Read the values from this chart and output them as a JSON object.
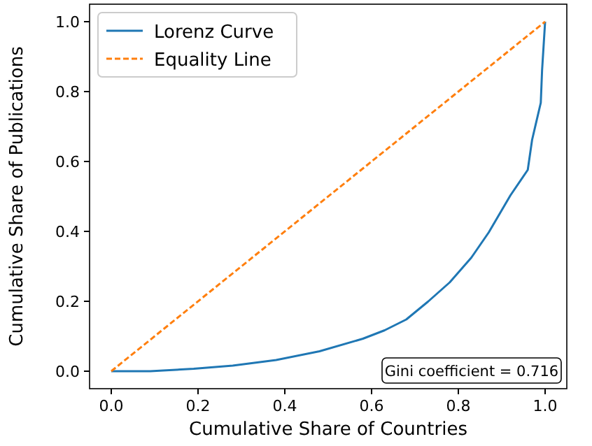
{
  "chart_data": {
    "type": "line",
    "xlabel": "Cumulative Share of Countries",
    "ylabel": "Cumulative Share of Publications",
    "xlim": [
      -0.05,
      1.05
    ],
    "ylim": [
      -0.05,
      1.05
    ],
    "xticks": [
      {
        "value": 0,
        "label": "0.0"
      },
      {
        "value": 0.2,
        "label": "0.2"
      },
      {
        "value": 0.4,
        "label": "0.4"
      },
      {
        "value": 0.6,
        "label": "0.6"
      },
      {
        "value": 0.8,
        "label": "0.8"
      },
      {
        "value": 1,
        "label": "1.0"
      }
    ],
    "yticks": [
      {
        "value": 0,
        "label": "0.0"
      },
      {
        "value": 0.2,
        "label": "0.2"
      },
      {
        "value": 0.4,
        "label": "0.4"
      },
      {
        "value": 0.6,
        "label": "0.6"
      },
      {
        "value": 0.8,
        "label": "0.8"
      },
      {
        "value": 1,
        "label": "1.0"
      }
    ],
    "series": [
      {
        "name": "Lorenz Curve",
        "color": "#1f77b4",
        "line_style": "solid",
        "x": [
          0,
          0.09,
          0.19,
          0.28,
          0.38,
          0.48,
          0.58,
          0.63,
          0.68,
          0.73,
          0.78,
          0.83,
          0.87,
          0.92,
          0.96,
          0.97,
          0.99,
          0.993,
          1
        ],
        "values": [
          0,
          0,
          0.007,
          0.016,
          0.032,
          0.057,
          0.093,
          0.117,
          0.148,
          0.199,
          0.254,
          0.325,
          0.397,
          0.503,
          0.576,
          0.662,
          0.768,
          0.861,
          1
        ]
      },
      {
        "name": "Equality Line",
        "color": "#ff7f0e",
        "line_style": "dashed",
        "x": [
          0,
          1
        ],
        "values": [
          0,
          1
        ]
      }
    ],
    "annotations": [
      "Gini coefficient = 0.716"
    ],
    "legend": "top left",
    "grid": false
  }
}
